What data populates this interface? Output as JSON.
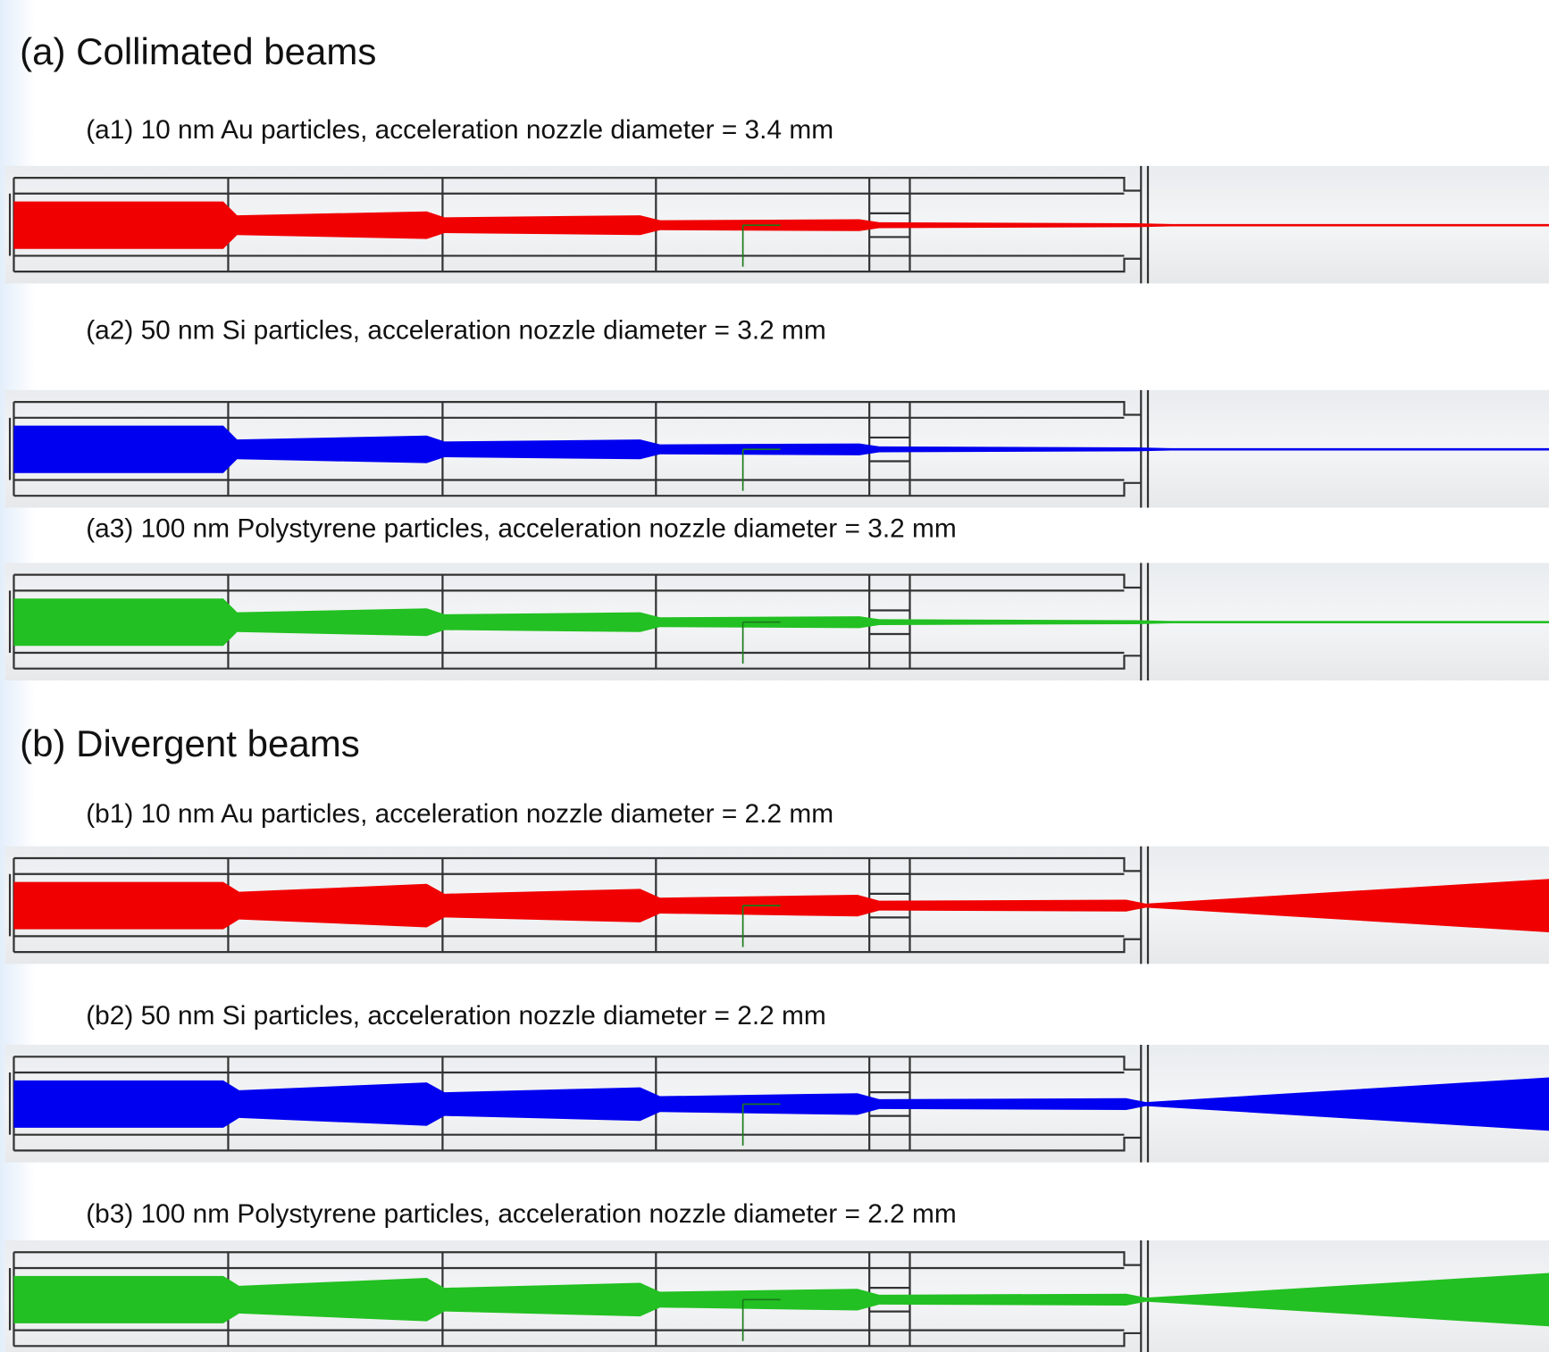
{
  "sections": [
    {
      "title": "(a) Collimated beams",
      "panels": [
        {
          "caption": "(a1) 10 nm Au particles, acceleration nozzle diameter = 3.4 mm"
        },
        {
          "caption": "(a2) 50 nm Si particles, acceleration nozzle diameter = 3.2 mm"
        },
        {
          "caption": "(a3) 100 nm Polystyrene particles, acceleration nozzle diameter = 3.2 mm"
        }
      ]
    },
    {
      "title": "(b) Divergent beams",
      "panels": [
        {
          "caption": "(b1) 10 nm Au particles, acceleration nozzle diameter = 2.2 mm"
        },
        {
          "caption": "(b2) 50 nm Si particles, acceleration nozzle diameter = 2.2 mm"
        },
        {
          "caption": "(b3) 100 nm Polystyrene particles, acceleration nozzle diameter = 2.2 mm"
        }
      ]
    }
  ]
}
